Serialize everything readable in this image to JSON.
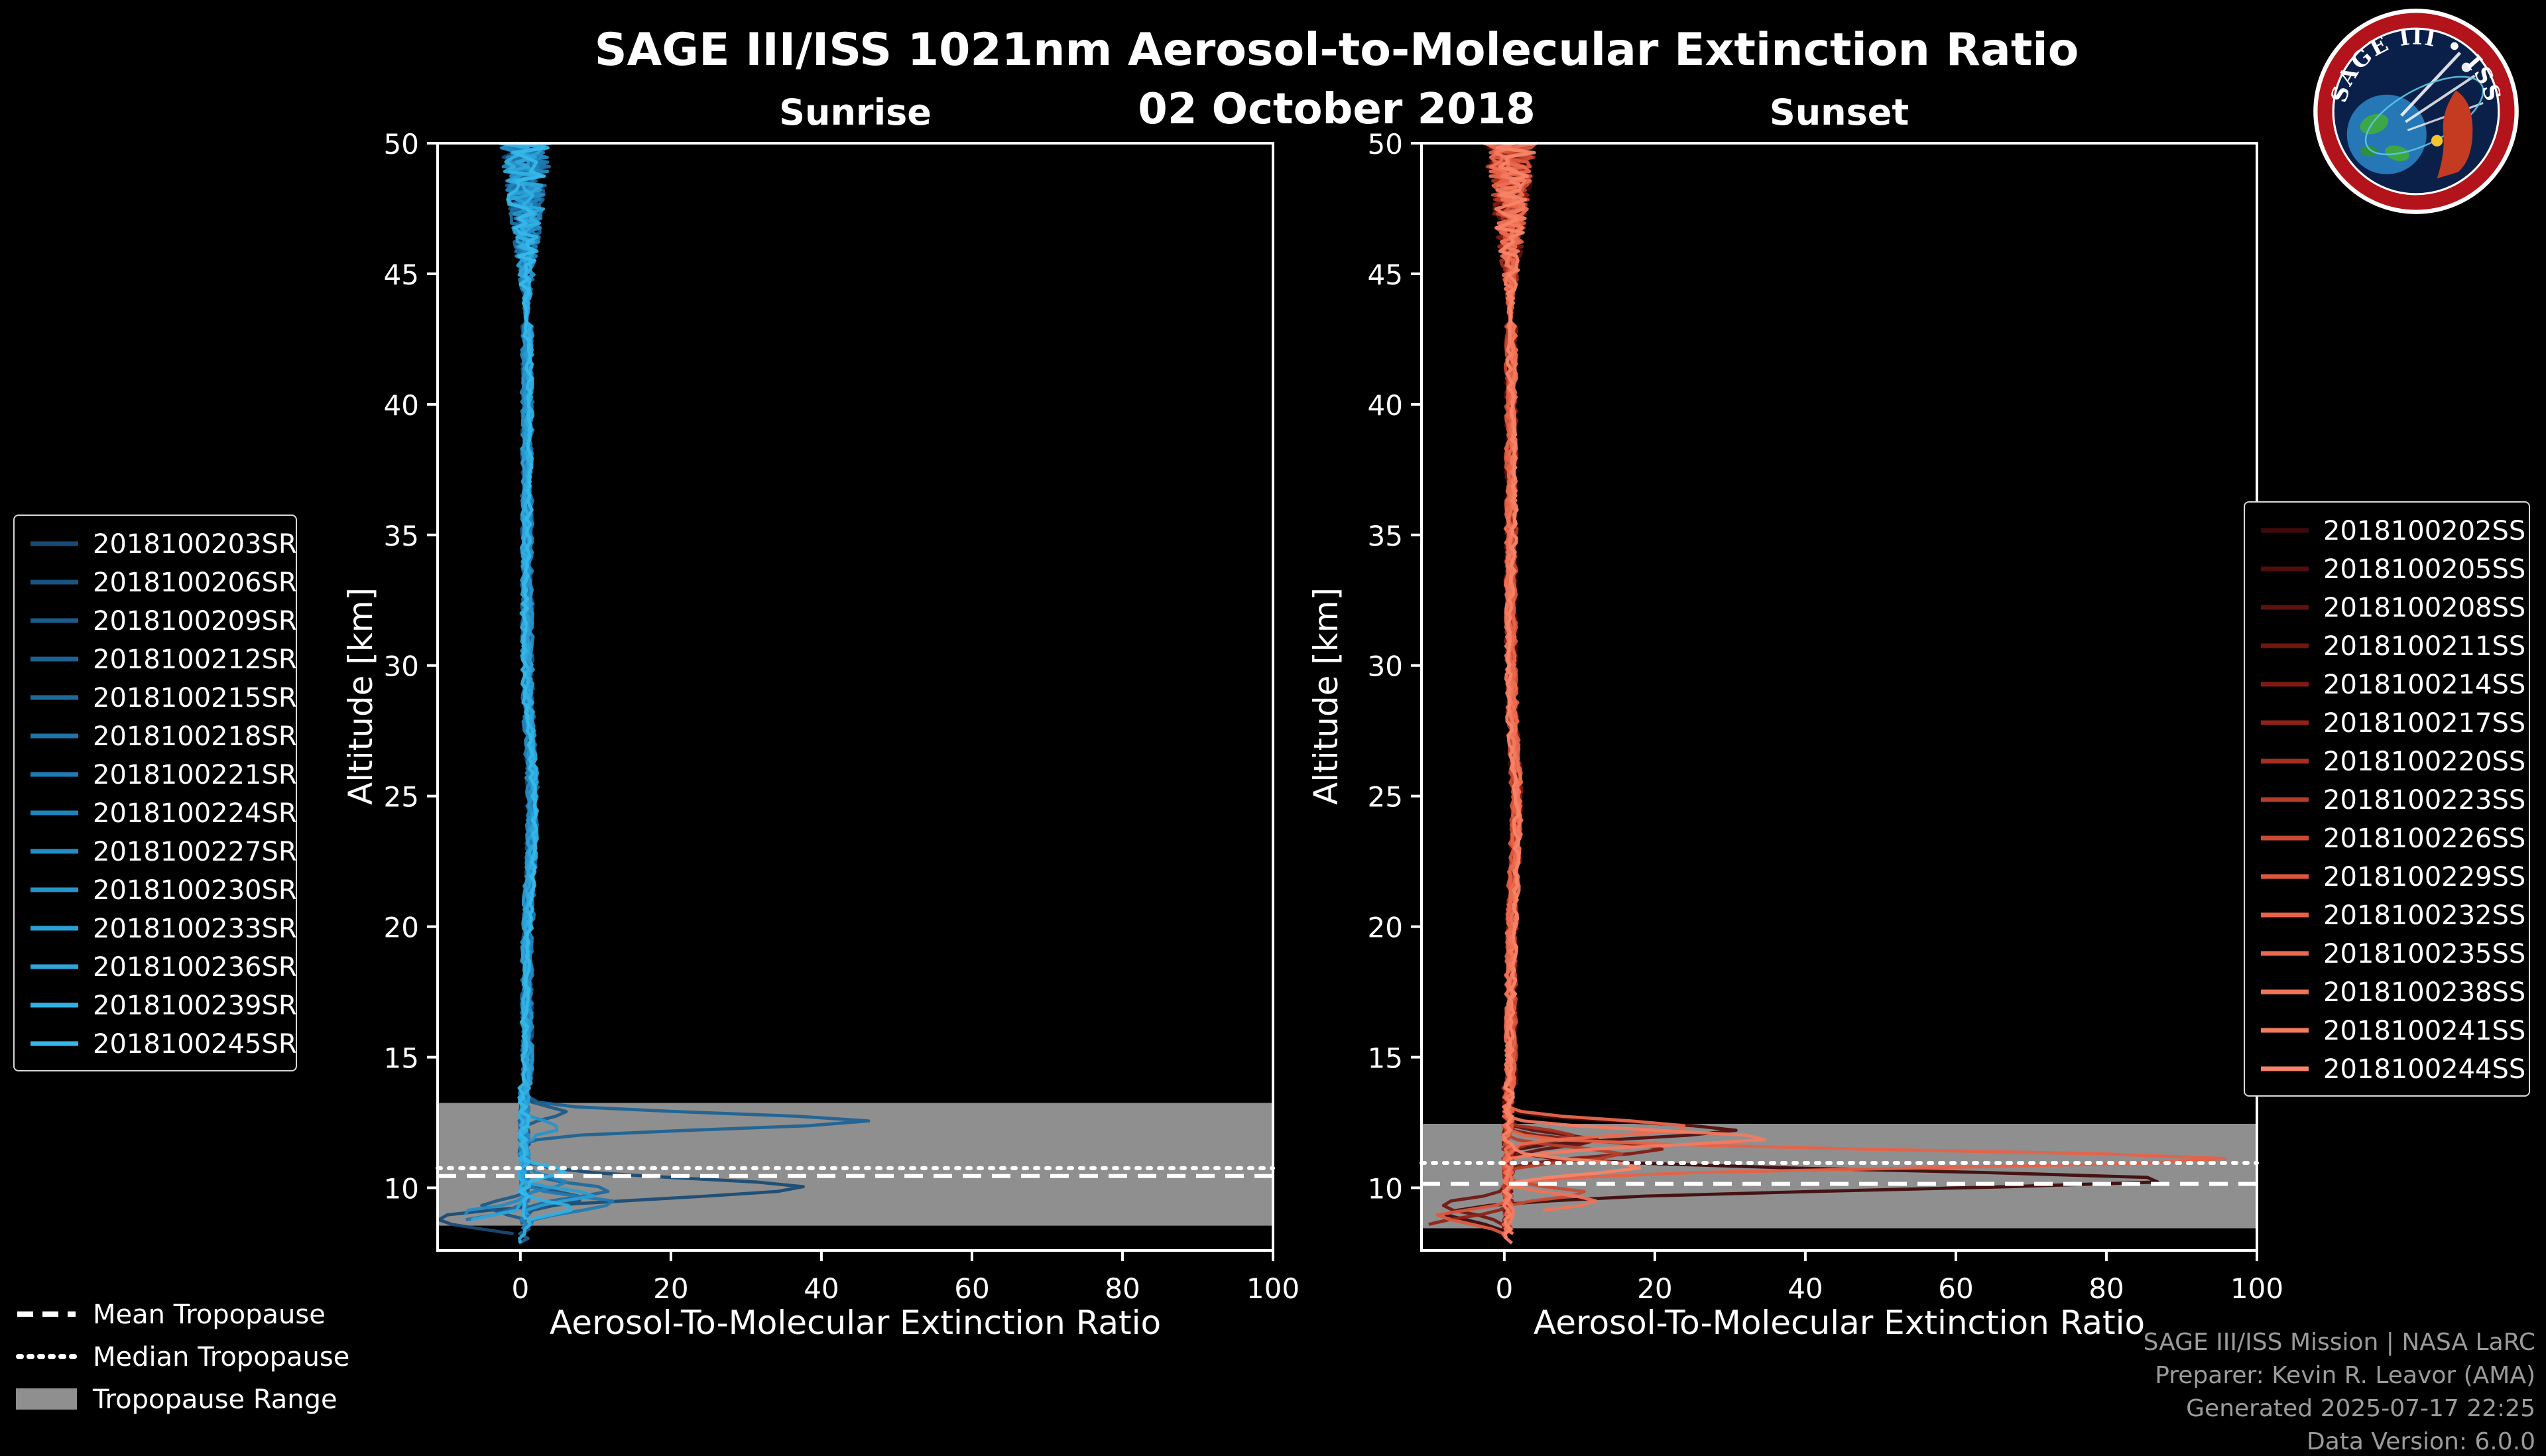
{
  "header": {
    "title": "SAGE III/ISS 1021nm Aerosol-to-Molecular Extinction Ratio",
    "subtitle": "02 October 2018"
  },
  "logo": {
    "text": "SAGE III • ISS"
  },
  "tropopause_legend": {
    "mean_label": "Mean Tropopause",
    "median_label": "Median Tropopause",
    "range_label": "Tropopause Range"
  },
  "footer": {
    "lines": [
      "SAGE III/ISS Mission | NASA LaRC",
      "Preparer: Kevin R. Leavor (AMA)",
      "Generated 2025-07-17 22:25",
      "Data Version: 6.0.0"
    ]
  },
  "chart_data": {
    "type": "line",
    "title": "SAGE III/ISS 1021nm Aerosol-to-Molecular Extinction Ratio",
    "subtitle": "02 October 2018",
    "xlabel": "Aerosol-To-Molecular Extinction Ratio",
    "ylabel": "Altitude [km]",
    "xlim": [
      -11,
      100
    ],
    "ylim": [
      7.6,
      50
    ],
    "xticks": [
      0,
      20,
      40,
      60,
      80,
      100
    ],
    "yticks": [
      10,
      15,
      20,
      25,
      30,
      35,
      40,
      45,
      50
    ],
    "grid": false,
    "band_color": "#8f8f8f",
    "panels": [
      {
        "title": "Sunrise",
        "color_stops": [
          "#1a4a74",
          "#1f7fb8",
          "#35b8ea"
        ],
        "tropopause": {
          "mean": 10.45,
          "median": 10.75,
          "range": [
            8.55,
            13.25
          ]
        },
        "series": [
          {
            "label": "2018100203SR",
            "features": [
              {
                "alt": 10.0,
                "mag": 37,
                "w": 0.5
              },
              {
                "alt": 8.8,
                "mag": -13,
                "w": 0.4
              }
            ]
          },
          {
            "label": "2018100206SR",
            "features": [
              {
                "alt": 9.6,
                "mag": 8,
                "w": 0.3
              }
            ]
          },
          {
            "label": "2018100209SR",
            "features": [
              {
                "alt": 12.9,
                "mag": 6,
                "w": 0.3
              },
              {
                "alt": 9.3,
                "mag": -6,
                "w": 0.3
              }
            ]
          },
          {
            "label": "2018100212SR",
            "features": [
              {
                "alt": 12.55,
                "mag": 46,
                "w": 0.4
              }
            ]
          },
          {
            "label": "2018100215SR",
            "features": [
              {
                "alt": 9.9,
                "mag": 11,
                "w": 0.35
              }
            ]
          },
          {
            "label": "2018100218SR",
            "features": [
              {
                "alt": 8.6,
                "mag": -10,
                "w": 0.4
              }
            ]
          },
          {
            "label": "2018100221SR",
            "features": [
              {
                "alt": 9.4,
                "mag": 12,
                "w": 0.4
              }
            ]
          },
          {
            "label": "2018100224SR",
            "features": [
              {
                "alt": 10.2,
                "mag": 6,
                "w": 0.3
              }
            ]
          },
          {
            "label": "2018100227SR",
            "features": [
              {
                "alt": 9.0,
                "mag": -8,
                "w": 0.35
              }
            ]
          },
          {
            "label": "2018100230SR",
            "features": [
              {
                "alt": 12.3,
                "mag": 5,
                "w": 0.3
              }
            ]
          },
          {
            "label": "2018100233SR",
            "features": [
              {
                "alt": 9.7,
                "mag": 9,
                "w": 0.3
              }
            ]
          },
          {
            "label": "2018100236SR",
            "features": [
              {
                "alt": 8.5,
                "mag": -11,
                "w": 0.45
              }
            ]
          },
          {
            "label": "2018100239SR",
            "features": [
              {
                "alt": 9.2,
                "mag": 7,
                "w": 0.3
              }
            ]
          },
          {
            "label": "2018100245SR",
            "features": [
              {
                "alt": 10.6,
                "mag": 5,
                "w": 0.3
              }
            ]
          }
        ]
      },
      {
        "title": "Sunset",
        "color_stops": [
          "#400a0a",
          "#8a1e14",
          "#e45c41",
          "#f88468"
        ],
        "tropopause": {
          "mean": 10.15,
          "median": 10.95,
          "range": [
            8.45,
            12.45
          ]
        },
        "series": [
          {
            "label": "2018100202SS",
            "features": [
              {
                "alt": 10.3,
                "mag": 88,
                "w": 0.5
              },
              {
                "alt": 9.0,
                "mag": -8,
                "w": 0.4
              }
            ]
          },
          {
            "label": "2018100205SS",
            "features": [
              {
                "alt": 12.2,
                "mag": 30,
                "w": 0.4
              }
            ]
          },
          {
            "label": "2018100208SS",
            "features": [
              {
                "alt": 11.8,
                "mag": 12,
                "w": 0.35
              }
            ]
          },
          {
            "label": "2018100211SS",
            "features": [
              {
                "alt": 9.3,
                "mag": -9,
                "w": 0.4
              }
            ]
          },
          {
            "label": "2018100214SS",
            "features": [
              {
                "alt": 11.5,
                "mag": 20,
                "w": 0.4
              }
            ]
          },
          {
            "label": "2018100217SS",
            "features": [
              {
                "alt": 8.6,
                "mag": -10,
                "w": 0.4
              }
            ]
          },
          {
            "label": "2018100220SS",
            "features": [
              {
                "alt": 12.0,
                "mag": 8,
                "w": 0.3
              }
            ]
          },
          {
            "label": "2018100223SS",
            "features": [
              {
                "alt": 11.3,
                "mag": 15,
                "w": 0.35
              }
            ]
          },
          {
            "label": "2018100226SS",
            "features": [
              {
                "alt": 9.8,
                "mag": 10,
                "w": 0.3
              }
            ]
          },
          {
            "label": "2018100229SS",
            "features": [
              {
                "alt": 8.9,
                "mag": -9,
                "w": 0.35
              }
            ]
          },
          {
            "label": "2018100232SS",
            "features": [
              {
                "alt": 11.1,
                "mag": 96,
                "w": 0.45
              }
            ]
          },
          {
            "label": "2018100235SS",
            "features": [
              {
                "alt": 12.3,
                "mag": 25,
                "w": 0.4
              }
            ]
          },
          {
            "label": "2018100238SS",
            "features": [
              {
                "alt": 9.5,
                "mag": 12,
                "w": 0.35
              }
            ]
          },
          {
            "label": "2018100241SS",
            "features": [
              {
                "alt": 11.9,
                "mag": 35,
                "w": 0.4
              }
            ]
          },
          {
            "label": "2018100244SS",
            "features": [
              {
                "alt": 10.8,
                "mag": 18,
                "w": 0.35
              }
            ]
          }
        ]
      }
    ]
  }
}
